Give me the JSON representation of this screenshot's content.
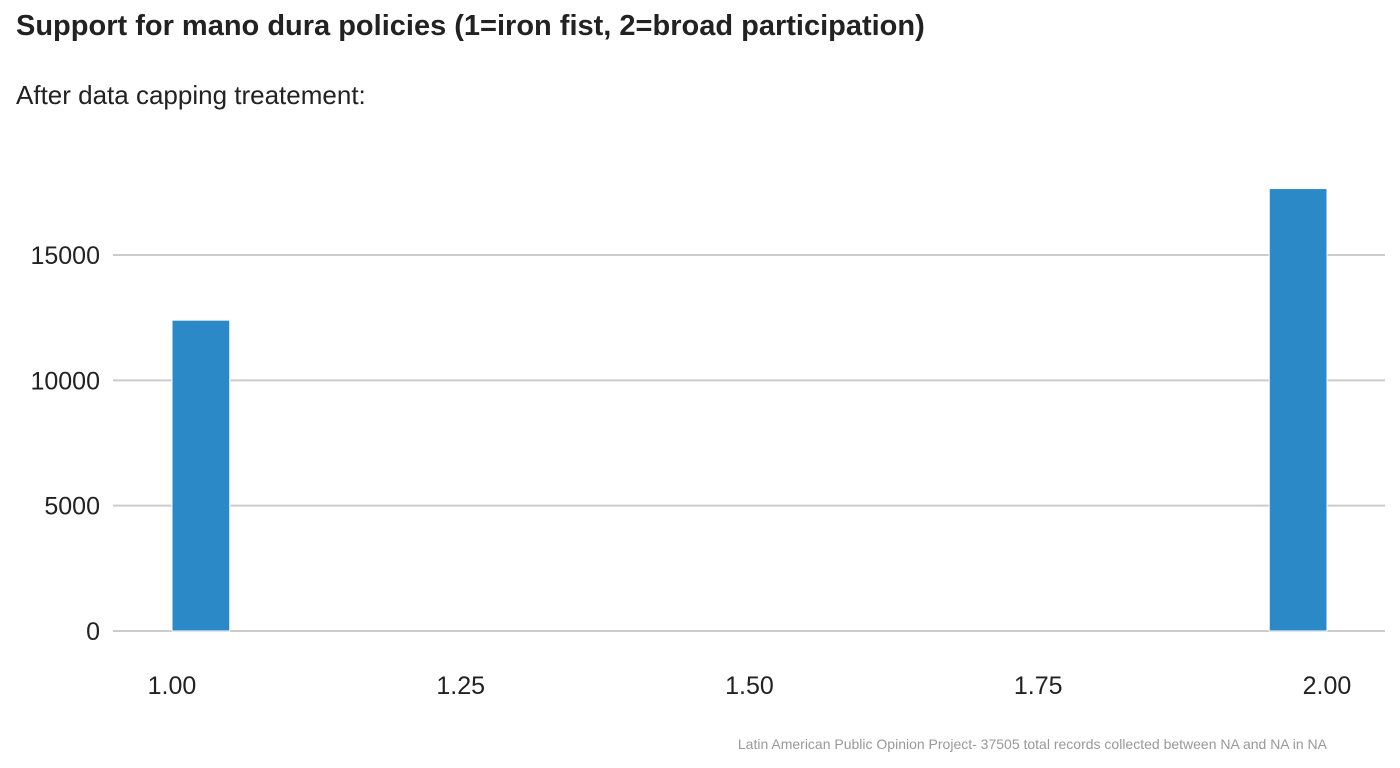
{
  "chart_data": {
    "type": "bar",
    "title": "Support for mano dura policies (1=iron fist, 2=broad participation)",
    "subtitle": "After data capping treatement:",
    "caption": "Latin American Public Opinion Project- 37505 total records collected between NA and NA in  NA",
    "xlabel": "",
    "ylabel": "",
    "x_ticks": [
      "1.00",
      "1.25",
      "1.50",
      "1.75",
      "2.00"
    ],
    "y_ticks": [
      "0",
      "5000",
      "10000",
      "15000"
    ],
    "xlim": [
      0.95,
      2.05
    ],
    "ylim": [
      0,
      18500
    ],
    "bins": [
      {
        "x_start": 1.0,
        "x_end": 1.05,
        "value": 12400
      },
      {
        "x_start": 1.95,
        "x_end": 2.0,
        "value": 17650
      }
    ],
    "grid": "horizontal",
    "legend": "none",
    "bar_color": "#2b89c8",
    "grid_color": "#cccccc"
  }
}
